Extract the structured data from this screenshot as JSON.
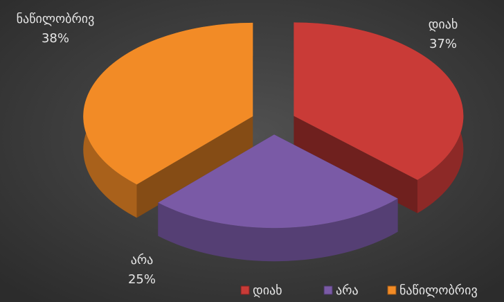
{
  "chart_data": {
    "type": "pie",
    "categories": [
      "დიახ",
      "არა",
      "ნაწილობრივ"
    ],
    "values": [
      37,
      25,
      38
    ],
    "value_labels": [
      "37%",
      "25%",
      "38%"
    ],
    "colors": [
      "#c93b37",
      "#7a5aa6",
      "#f28b26"
    ],
    "legend": "bottom-right",
    "exploded": true,
    "three_d": true
  }
}
